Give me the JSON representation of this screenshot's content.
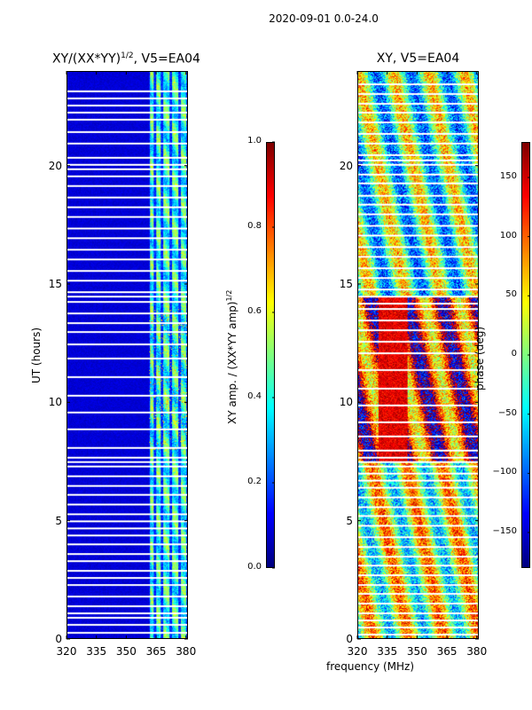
{
  "suptitle": "2020-09-01 0.0-24.0",
  "chart_data": [
    {
      "type": "heatmap",
      "title_main": "XY/(XX*YY)",
      "title_exp": "1/2",
      "title_rest": ", V5=EA04",
      "xlabel": "",
      "ylabel": "UT (hours)",
      "x_range": [
        320,
        381
      ],
      "y_range": [
        0,
        24
      ],
      "xticks": [
        320,
        335,
        350,
        365,
        380
      ],
      "yticks": [
        0,
        5,
        10,
        15,
        20
      ],
      "band_edges_mhz": [
        361.5,
        364.5,
        368,
        372.5,
        377,
        381
      ],
      "missing_time_rows": [
        0.25,
        0.6,
        0.9,
        1.1,
        1.4,
        1.8,
        2.3,
        2.6,
        2.9,
        3.3,
        3.6,
        4.0,
        4.4,
        4.7,
        5.0,
        5.3,
        5.7,
        6.1,
        6.5,
        6.9,
        7.3,
        7.5,
        7.7,
        8.1,
        8.9,
        9.6,
        10.3,
        11.1,
        11.9,
        12.5,
        13.0,
        13.4,
        13.8,
        14.3,
        14.5,
        14.7,
        15.2,
        15.6,
        16.1,
        16.5,
        17.0,
        17.4,
        17.9,
        18.3,
        18.7,
        19.2,
        19.6,
        19.9,
        20.1,
        20.4,
        21.0,
        21.5,
        22.0,
        22.3,
        22.6,
        22.9,
        23.2
      ],
      "colorbar": {
        "label_main": "XY amp. / (XX*YY amp)",
        "label_exp": "1/2",
        "range": [
          0.0,
          1.0
        ],
        "ticks": [
          "0.0",
          "0.2",
          "0.4",
          "0.6",
          "0.8",
          "1.0"
        ],
        "tick_values": [
          0.0,
          0.2,
          0.4,
          0.6,
          0.8,
          1.0
        ]
      }
    },
    {
      "type": "heatmap",
      "title_main": "XY, V5=EA04",
      "xlabel": "frequency (MHz)",
      "ylabel": "",
      "x_range": [
        320,
        381
      ],
      "y_range": [
        0,
        24
      ],
      "xticks": [
        320,
        335,
        350,
        365,
        380
      ],
      "yticks": [
        0,
        5,
        10,
        15,
        20
      ],
      "missing_time_rows": [
        0.2,
        0.5,
        0.8,
        1.1,
        1.5,
        1.9,
        2.3,
        2.7,
        3.1,
        3.5,
        3.9,
        4.3,
        4.8,
        5.2,
        5.6,
        6.0,
        6.4,
        6.7,
        7.0,
        7.3,
        7.5,
        7.7,
        8.0,
        8.6,
        9.2,
        9.9,
        10.6,
        11.4,
        12.1,
        12.6,
        13.1,
        13.5,
        14.0,
        14.2,
        14.5,
        14.8,
        15.3,
        15.7,
        16.2,
        16.6,
        17.1,
        17.5,
        18.0,
        18.4,
        18.8,
        19.3,
        19.7,
        20.1,
        20.3,
        20.5,
        21.0,
        21.4,
        21.9,
        22.3,
        22.7,
        23.1,
        23.5
      ],
      "colorbar": {
        "label_main": "phase (deg)",
        "range": [
          -180,
          180
        ],
        "ticks": [
          "−150",
          "−100",
          "−50",
          "0",
          "50",
          "100",
          "150"
        ],
        "tick_values": [
          -150,
          -100,
          -50,
          0,
          50,
          100,
          150
        ]
      }
    }
  ]
}
